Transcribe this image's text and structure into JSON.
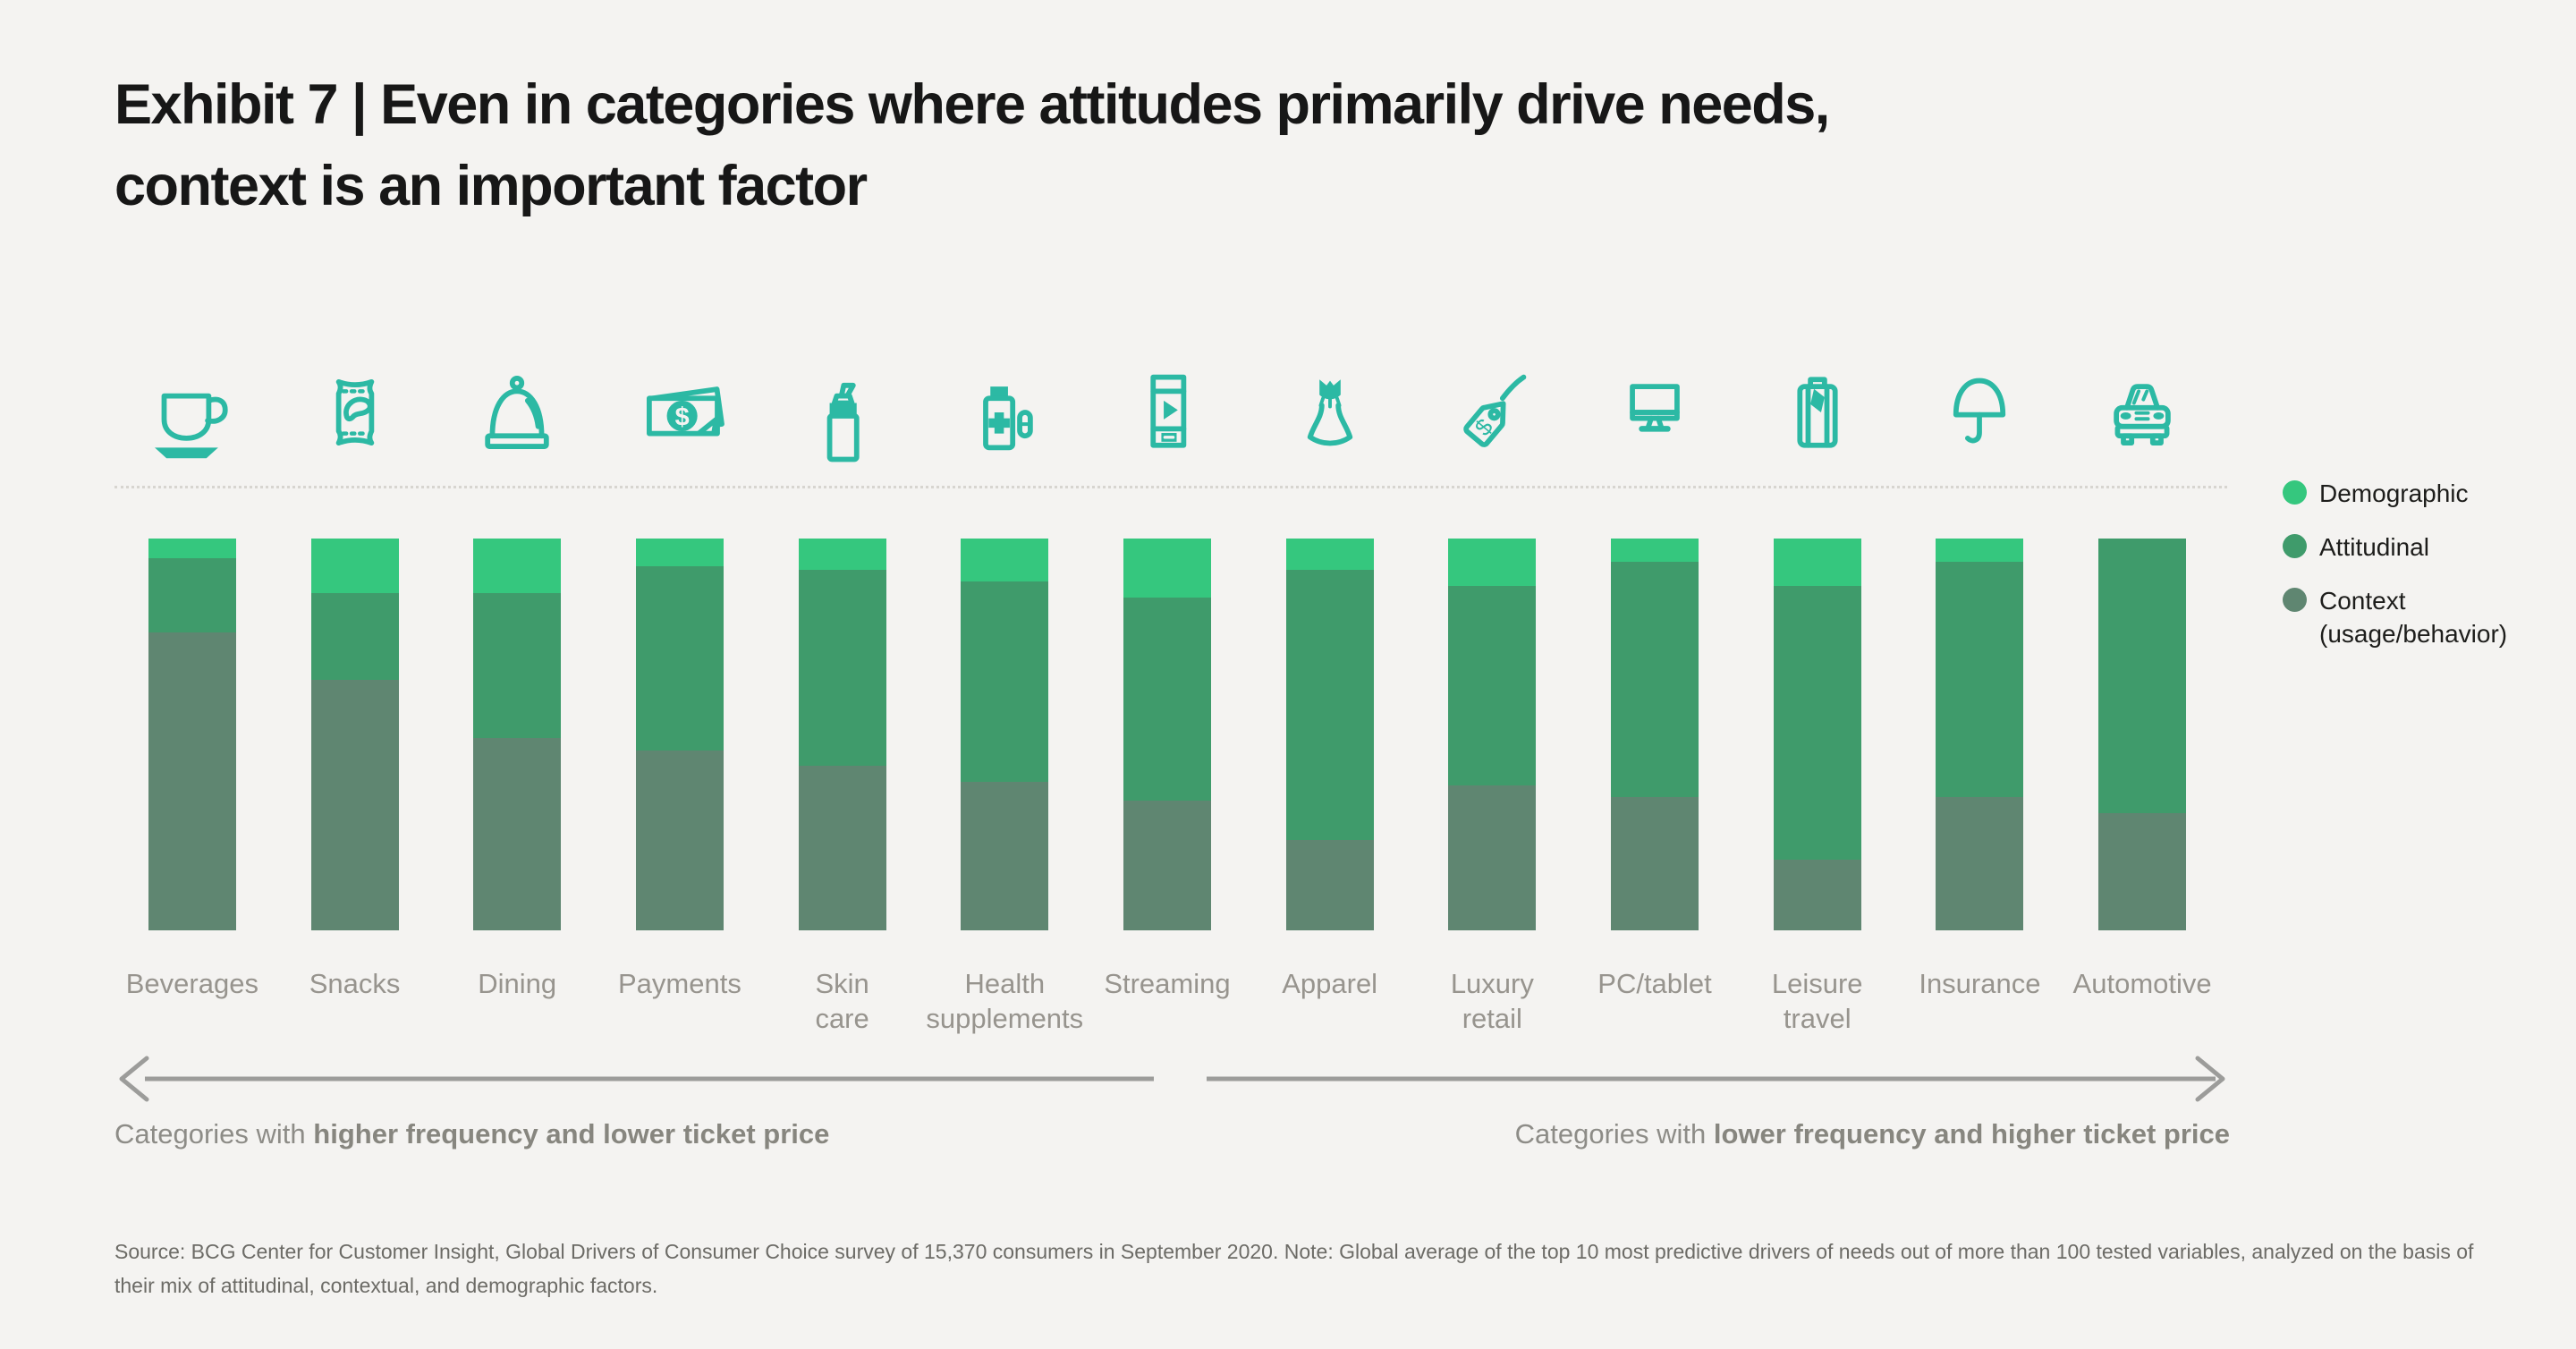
{
  "title": {
    "line1": "Exhibit 7 | Even in categories where attitudes primarily drive needs,",
    "line2": "context is an important factor"
  },
  "colors": {
    "background": "#f4f3f1",
    "icon_teal": "#2CB9A4",
    "demographic": "#35C77E",
    "attitudinal": "#3F9B6B",
    "context": "#5F8671",
    "arrow_gray": "#9C9C9A"
  },
  "legend": [
    {
      "label": "Demographic",
      "color": "#35C77E"
    },
    {
      "label": "Attitudinal",
      "color": "#3F9B6B"
    },
    {
      "label": "Context\n(usage/behavior)",
      "color": "#5F8671"
    }
  ],
  "icons": [
    "coffee-cup",
    "snack-bag",
    "food-cloche",
    "banknotes",
    "pump-bottle",
    "supplement-bottle",
    "phone-play",
    "dress",
    "price-tag",
    "monitor",
    "suitcase",
    "umbrella",
    "car-front"
  ],
  "two_line_labels": [
    "Skin care",
    "Health supplements",
    "Luxury retail",
    "Leisure travel"
  ],
  "chart_data": {
    "type": "bar",
    "stacked": true,
    "units": "percent of need drivers (100% stacked, no value labels shown)",
    "categories": [
      "Beverages",
      "Snacks",
      "Dining",
      "Payments",
      "Skin care",
      "Health supplements",
      "Streaming",
      "Apparel",
      "Luxury retail",
      "PC/tablet",
      "Leisure travel",
      "Insurance",
      "Automotive"
    ],
    "series": [
      {
        "name": "Demographic",
        "color": "#35C77E",
        "values": [
          5,
          14,
          14,
          7,
          8,
          11,
          15,
          8,
          12,
          6,
          12,
          6,
          0
        ]
      },
      {
        "name": "Attitudinal",
        "color": "#3F9B6B",
        "values": [
          19,
          22,
          37,
          47,
          50,
          51,
          52,
          69,
          51,
          60,
          70,
          60,
          70
        ]
      },
      {
        "name": "Context (usage/behavior)",
        "color": "#5F8671",
        "values": [
          76,
          64,
          49,
          46,
          42,
          38,
          33,
          23,
          37,
          34,
          18,
          34,
          30
        ]
      }
    ],
    "segment_order_top_to_bottom": [
      "Demographic",
      "Attitudinal",
      "Context (usage/behavior)"
    ],
    "ylim": [
      0,
      100
    ],
    "grid": false,
    "legend_position": "right"
  },
  "captions": {
    "left": {
      "prefix": "Categories with ",
      "bold": "higher frequency and lower ticket price"
    },
    "right": {
      "prefix": "Categories with ",
      "bold": "lower frequency and higher ticket price"
    }
  },
  "source": "Source: BCG Center for Customer Insight, Global Drivers of Consumer Choice survey of 15,370 consumers in September 2020. Note: Global average of the top 10 most predictive drivers of needs out of more than 100 tested variables, analyzed on the basis of their mix of attitudinal, contextual, and demographic factors."
}
